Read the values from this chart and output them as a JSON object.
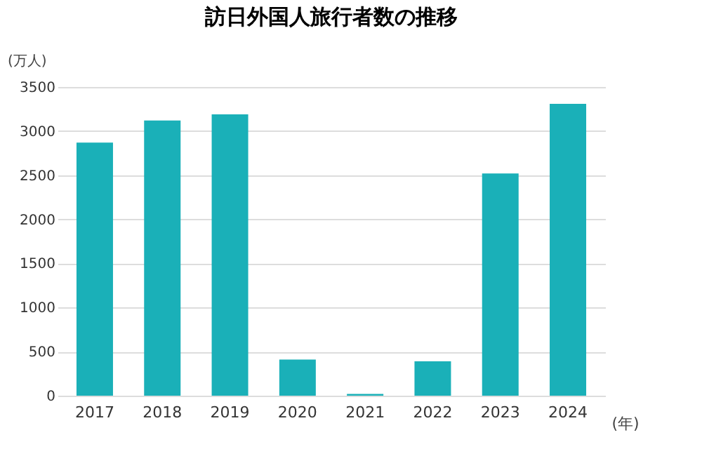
{
  "chart_data": {
    "type": "bar",
    "title": "訪日外国人旅行者数の推移",
    "ylabel": "(万人)",
    "xlabel": "(年)",
    "categories": [
      "2017",
      "2018",
      "2019",
      "2020",
      "2021",
      "2022",
      "2023",
      "2024"
    ],
    "values": [
      2870,
      3120,
      3190,
      410,
      20,
      390,
      2520,
      3310
    ],
    "color": "#1ab0b8",
    "ylim": [
      0,
      3500
    ],
    "yticks": [
      0,
      500,
      1000,
      1500,
      2000,
      2500,
      3000,
      3500
    ],
    "grid": "y"
  }
}
